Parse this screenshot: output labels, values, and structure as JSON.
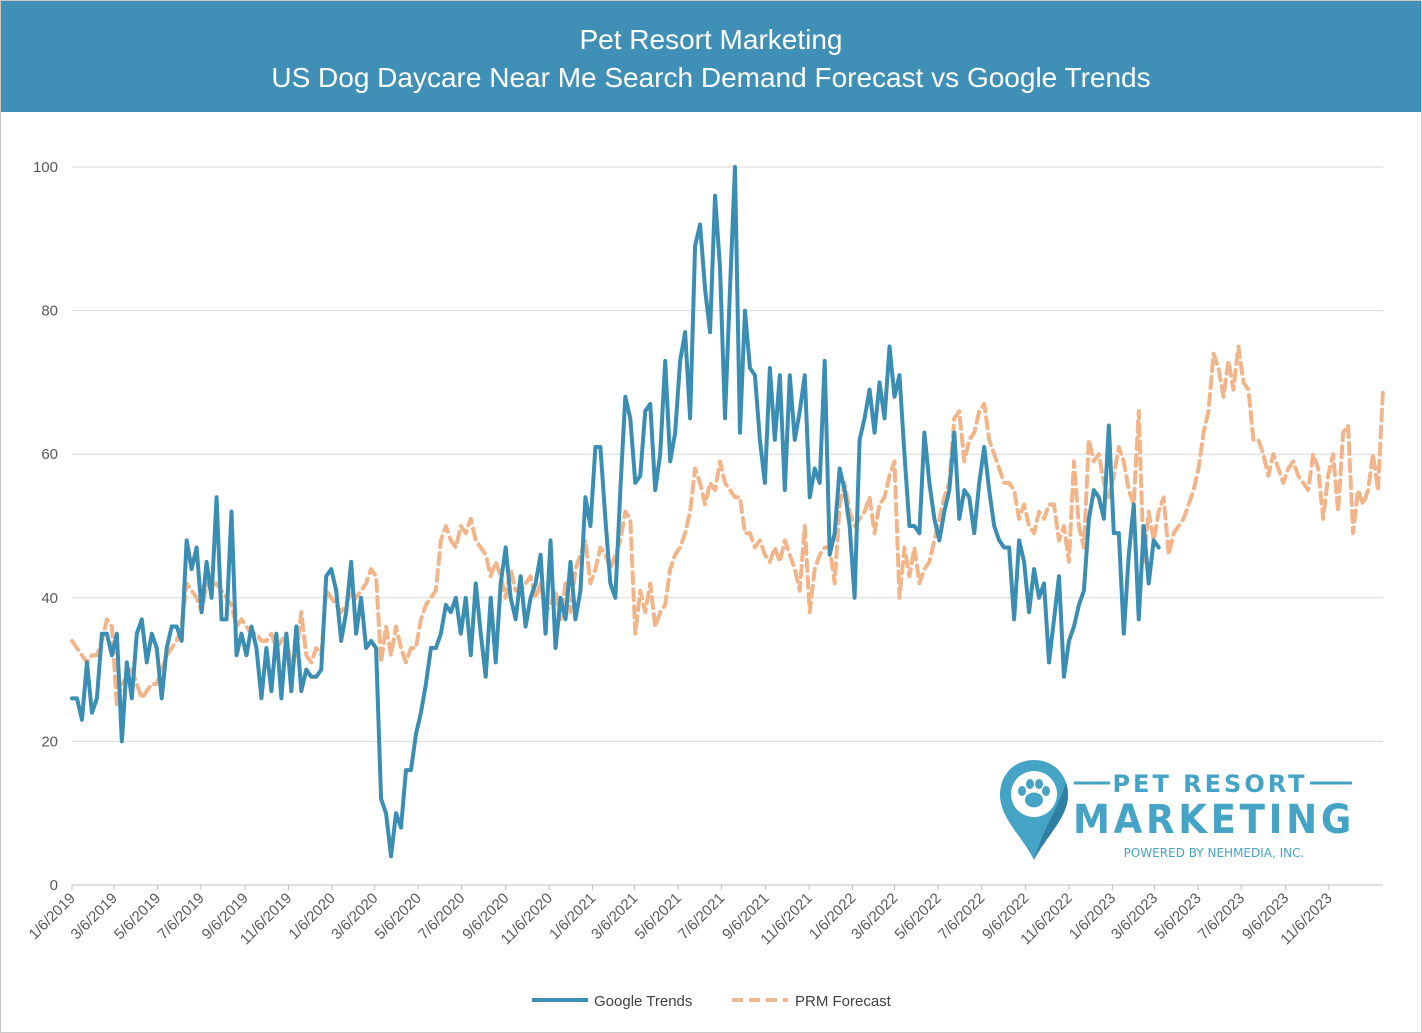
{
  "header": {
    "title": "Pet Resort Marketing",
    "subtitle": "US Dog Daycare Near Me Search Demand  Forecast vs Google Trends"
  },
  "logo": {
    "line1": "PET RESORT",
    "line2": "MARKETING",
    "line3": "POWERED BY NEHMEDIA, INC."
  },
  "colors": {
    "header_bg": "#3f8fb6",
    "google_trends": "#3a8db3",
    "prm_forecast": "#f2b58a",
    "grid": "#d9d9d9",
    "logo": "#45a3c6"
  },
  "chart_data": {
    "type": "line",
    "title": "Pet Resort Marketing US Dog Daycare Near Me Search Demand  Forecast vs Google Trends",
    "xlabel": "",
    "ylabel": "",
    "ylim": [
      0,
      100
    ],
    "y_ticks": [
      "0",
      "20",
      "40",
      "60",
      "80",
      "100"
    ],
    "x_tick_labels": [
      "1/6/2019",
      "3/6/2019",
      "5/6/2019",
      "7/6/2019",
      "9/6/2019",
      "11/6/2019",
      "1/6/2020",
      "3/6/2020",
      "5/6/2020",
      "7/6/2020",
      "9/6/2020",
      "11/6/2020",
      "1/6/2021",
      "3/6/2021",
      "5/6/2021",
      "7/6/2021",
      "9/6/2021",
      "11/6/2021",
      "1/6/2022",
      "3/6/2022",
      "5/6/2022",
      "7/6/2022",
      "9/6/2022",
      "11/6/2022",
      "1/6/2023",
      "3/6/2023",
      "5/6/2023",
      "7/6/2023",
      "9/6/2023",
      "11/6/2023"
    ],
    "x_start": "1/6/2019",
    "grid": true,
    "legend_position": "bottom",
    "series": [
      {
        "name": "Google Trends",
        "style": "solid",
        "values": [
          26,
          26,
          23,
          31,
          24,
          26,
          35,
          35,
          32,
          35,
          20,
          31,
          26,
          35,
          37,
          31,
          35,
          33,
          26,
          33,
          36,
          36,
          34,
          48,
          44,
          47,
          38,
          45,
          40,
          54,
          37,
          37,
          52,
          32,
          35,
          32,
          36,
          33,
          26,
          33,
          27,
          35,
          26,
          35,
          27,
          36,
          27,
          30,
          29,
          29,
          30,
          43,
          44,
          41,
          34,
          38,
          45,
          35,
          40,
          33,
          34,
          33,
          12,
          10,
          4,
          10,
          8,
          16,
          16,
          21,
          24,
          28,
          33,
          33,
          35,
          39,
          38,
          40,
          35,
          40,
          32,
          42,
          35,
          29,
          40,
          31,
          42,
          47,
          40,
          37,
          43,
          36,
          40,
          42,
          46,
          35,
          48,
          33,
          40,
          37,
          45,
          37,
          41,
          54,
          50,
          61,
          61,
          51,
          42,
          40,
          55,
          68,
          65,
          56,
          57,
          66,
          67,
          55,
          60,
          73,
          59,
          63,
          73,
          77,
          65,
          89,
          92,
          83,
          77,
          96,
          86,
          65,
          83,
          100,
          63,
          80,
          72,
          71,
          62,
          56,
          72,
          62,
          71,
          55,
          71,
          62,
          66,
          71,
          54,
          58,
          56,
          73,
          46,
          49,
          58,
          55,
          50,
          40,
          62,
          65,
          69,
          63,
          70,
          65,
          75,
          68,
          71,
          60,
          50,
          50,
          49,
          63,
          56,
          51,
          48,
          52,
          55,
          63,
          51,
          55,
          54,
          49,
          56,
          61,
          55,
          50,
          48,
          47,
          47,
          37,
          48,
          45,
          38,
          44,
          40,
          42,
          31,
          37,
          43,
          29,
          34,
          36,
          39,
          41,
          51,
          55,
          54,
          51,
          64,
          49,
          49,
          35,
          46,
          53,
          37,
          50,
          42,
          48,
          47
        ]
      },
      {
        "name": "PRM Forecast",
        "style": "dashed",
        "values": [
          34,
          33,
          32,
          31,
          32,
          32,
          34,
          37,
          36,
          25,
          28,
          29,
          30,
          28,
          26,
          27,
          28,
          28,
          30,
          32,
          33,
          34,
          36,
          42,
          41,
          40,
          38,
          42,
          41,
          42,
          41,
          40,
          39,
          36,
          37,
          36,
          35,
          35,
          34,
          34,
          35,
          33,
          34,
          35,
          30,
          32,
          38,
          32,
          31,
          33,
          32,
          41,
          40,
          39,
          38,
          39,
          41,
          40,
          41,
          42,
          44,
          43,
          31,
          36,
          32,
          36,
          33,
          31,
          33,
          33,
          37,
          39,
          40,
          41,
          48,
          50,
          48,
          47,
          50,
          49,
          51,
          48,
          47,
          46,
          43,
          45,
          43,
          40,
          44,
          41,
          41,
          42,
          43,
          40,
          42,
          38,
          39,
          41,
          37,
          42,
          38,
          44,
          46,
          48,
          42,
          44,
          47,
          46,
          44,
          46,
          48,
          52,
          51,
          35,
          41,
          38,
          42,
          36,
          38,
          39,
          44,
          46,
          47,
          49,
          52,
          58,
          56,
          53,
          56,
          55,
          59,
          56,
          55,
          54,
          54,
          49,
          49,
          47,
          48,
          46,
          45,
          47,
          45,
          48,
          46,
          44,
          41,
          50,
          38,
          44,
          46,
          47,
          47,
          42,
          53,
          56,
          52,
          50,
          51,
          52,
          54,
          49,
          53,
          54,
          57,
          59,
          40,
          47,
          43,
          47,
          42,
          44,
          45,
          48,
          51,
          54,
          56,
          65,
          66,
          59,
          62,
          63,
          66,
          67,
          62,
          60,
          58,
          56,
          56,
          55,
          51,
          53,
          50,
          49,
          52,
          51,
          53,
          53,
          48,
          50,
          45,
          59,
          50,
          47,
          62,
          59,
          60,
          56,
          54,
          57,
          61,
          59,
          55,
          53,
          66,
          45,
          52,
          48,
          52,
          54,
          46,
          49,
          50,
          51,
          53,
          55,
          58,
          63,
          66,
          74,
          72,
          68,
          73,
          69,
          75,
          70,
          69,
          62,
          62,
          60,
          57,
          60,
          58,
          56,
          58,
          59,
          57,
          56,
          55,
          60,
          58,
          51,
          57,
          60,
          52,
          63,
          64,
          49,
          55,
          53,
          55,
          60,
          55,
          69
        ]
      }
    ]
  }
}
